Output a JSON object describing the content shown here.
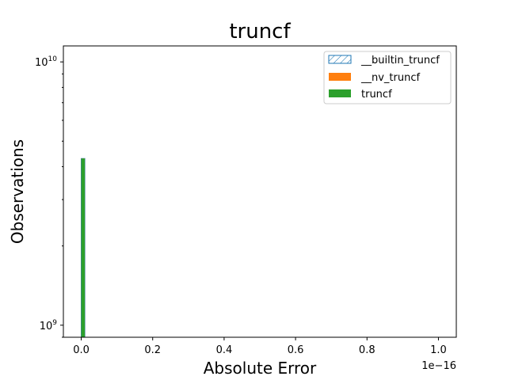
{
  "chart_data": {
    "type": "bar",
    "title": "truncf",
    "xlabel": "Absolute Error",
    "ylabel": "Observations",
    "x_offset_label": "1e−16",
    "xlim": [
      -0.05,
      1.05
    ],
    "xticks": [
      {
        "value": 0.0,
        "label": "0.0"
      },
      {
        "value": 0.2,
        "label": "0.2"
      },
      {
        "value": 0.4,
        "label": "0.4"
      },
      {
        "value": 0.6,
        "label": "0.6"
      },
      {
        "value": 0.8,
        "label": "0.8"
      },
      {
        "value": 1.0,
        "label": "1.0"
      }
    ],
    "yscale": "log",
    "ylim": [
      900000000,
      11500000000
    ],
    "yticks": [
      {
        "value": 1000000000,
        "base": "10",
        "exp": "9"
      },
      {
        "value": 10000000000,
        "base": "10",
        "exp": "10"
      }
    ],
    "legend_position": "top-right",
    "series": [
      {
        "name": "__builtin_truncf",
        "style": "hatched",
        "color": "#1f77b4",
        "bins": [
          {
            "x0": 0.0,
            "x1": 0.01,
            "value": 4294967296
          }
        ]
      },
      {
        "name": "__nv_truncf",
        "style": "filled",
        "color": "#ff7f0e",
        "bins": [
          {
            "x0": 0.0,
            "x1": 0.01,
            "value": 4294967296
          }
        ]
      },
      {
        "name": "truncf",
        "style": "filled",
        "color": "#2ca02c",
        "bins": [
          {
            "x0": 0.0,
            "x1": 0.01,
            "value": 4294967296
          }
        ]
      }
    ]
  }
}
